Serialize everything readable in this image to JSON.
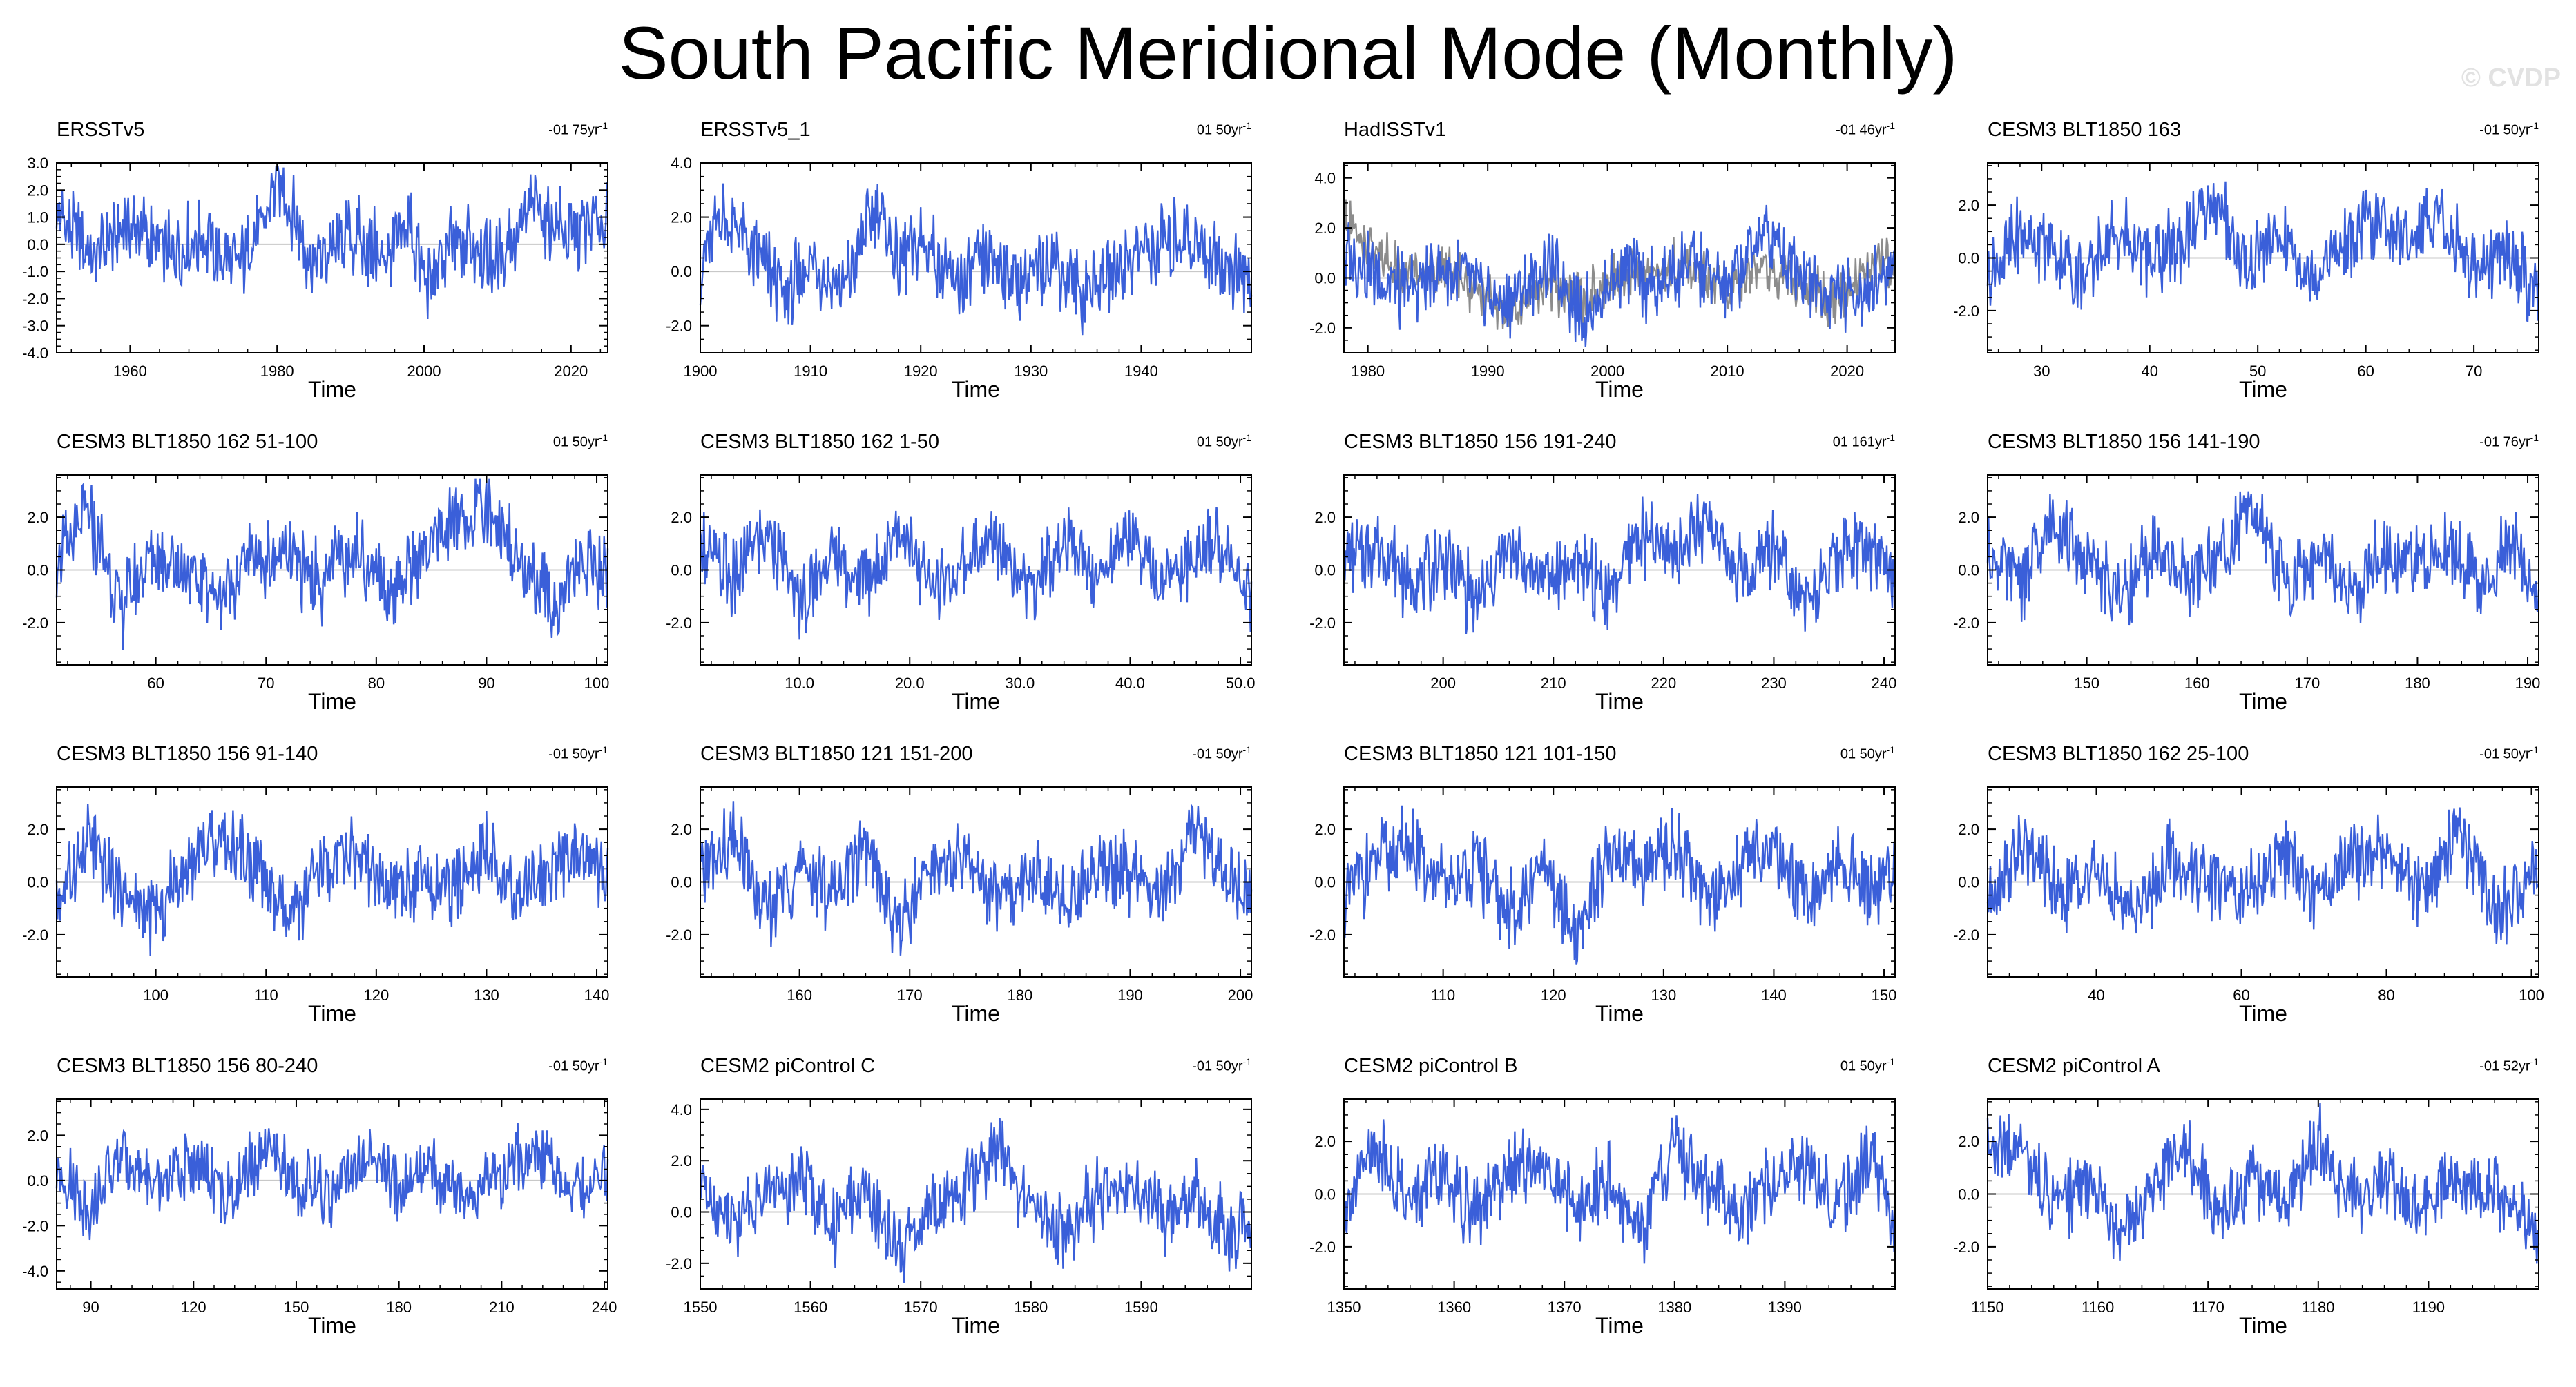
{
  "title": "South Pacific Meridional Mode (Monthly)",
  "watermark": "© CVDP",
  "colors": {
    "main_series": "#3a5fd9",
    "obs_overlay": "#8c8c8c",
    "zero_line": "#c8c8c8",
    "axis": "#000000"
  },
  "chart_data": [
    {
      "type": "line",
      "title": "ERSSTv5",
      "trend": "-01 75yr",
      "xlabel": "Time",
      "xlim": [
        1950,
        2025
      ],
      "ylim": [
        -4,
        3
      ],
      "xticks": [
        1960,
        1980,
        2000,
        2020
      ],
      "yticks": [
        -4,
        -3,
        -2,
        -1,
        0,
        1,
        2,
        3
      ],
      "ytick_labels": [
        "-4.0",
        "-3.0",
        "-2.0",
        "-1.0",
        "0.0",
        "1.0",
        "2.0",
        "3.0"
      ],
      "x": [
        1950,
        1955,
        1960,
        1965,
        1970,
        1975,
        1978,
        1980,
        1982,
        1985,
        1990,
        1995,
        1998,
        2000,
        2005,
        2010,
        2015,
        2020,
        2025
      ],
      "y": [
        1.2,
        -0.6,
        0.8,
        -0.4,
        0.2,
        -1.0,
        0.9,
        2.4,
        1.2,
        -0.8,
        0.4,
        -0.6,
        0.8,
        -1.4,
        0.2,
        -0.6,
        1.3,
        0.3,
        0.9
      ],
      "series2": null
    },
    {
      "type": "line",
      "title": "ERSSTv5_1",
      "trend": "01 50yr",
      "xlabel": "Time",
      "xlim": [
        1900,
        1950
      ],
      "ylim": [
        -3,
        4
      ],
      "xticks": [
        1900,
        1910,
        1920,
        1930,
        1940
      ],
      "yticks": [
        -2,
        0,
        2,
        4
      ],
      "ytick_labels": [
        "-2.0",
        "0.0",
        "2.0",
        "4.0"
      ],
      "x": [
        1900,
        1902,
        1905,
        1908,
        1910,
        1913,
        1916,
        1918,
        1920,
        1923,
        1926,
        1929,
        1932,
        1935,
        1938,
        1941,
        1944,
        1947,
        1950
      ],
      "y": [
        0.3,
        2.1,
        0.6,
        -0.9,
        0.4,
        -0.5,
        2.6,
        0.3,
        1.2,
        -0.6,
        0.5,
        -0.3,
        0.4,
        -0.8,
        0.3,
        0.9,
        1.3,
        0.4,
        -0.5
      ],
      "series2": null
    },
    {
      "type": "line",
      "title": "HadISSTv1",
      "trend": "-01 46yr",
      "xlabel": "Time",
      "xlim": [
        1978,
        2024
      ],
      "ylim": [
        -3,
        4.6
      ],
      "xticks": [
        1980,
        1990,
        2000,
        2010,
        2020
      ],
      "yticks": [
        -2,
        0,
        2,
        4
      ],
      "ytick_labels": [
        "-2.0",
        "0.0",
        "2.0",
        "4.0"
      ],
      "x": [
        1978,
        1980,
        1983,
        1986,
        1989,
        1992,
        1995,
        1998,
        2001,
        2004,
        2007,
        2010,
        2013,
        2016,
        2019,
        2022,
        2024
      ],
      "y": [
        0.8,
        0.4,
        -0.6,
        0.5,
        -0.4,
        -1.1,
        0.6,
        -1.6,
        0.3,
        -0.5,
        0.8,
        -0.7,
        2.2,
        0.3,
        -0.8,
        -0.4,
        0.5
      ],
      "series2": {
        "x": [
          1978,
          1980,
          1983,
          1986,
          1989,
          1992,
          1995,
          1998,
          2001,
          2004,
          2007,
          2010,
          2013,
          2016,
          2019,
          2022,
          2024
        ],
        "y": [
          2.2,
          1.3,
          0.2,
          0.4,
          -0.6,
          -1.3,
          -0.2,
          -0.9,
          0.3,
          0.2,
          0.6,
          -0.4,
          0.6,
          -0.3,
          -0.9,
          0.3,
          0.8
        ]
      }
    },
    {
      "type": "line",
      "title": "CESM3 BLT1850 163",
      "trend": "-01 50yr",
      "xlabel": "Time",
      "xlim": [
        25,
        76
      ],
      "ylim": [
        -3.6,
        3.6
      ],
      "xticks": [
        30,
        40,
        50,
        60,
        70
      ],
      "yticks": [
        -2,
        0,
        2
      ],
      "ytick_labels": [
        "-2.0",
        "0.0",
        "2.0"
      ],
      "x": [
        25,
        28,
        31,
        34,
        37,
        40,
        43,
        46,
        49,
        52,
        55,
        58,
        61,
        64,
        67,
        70,
        73,
        76
      ],
      "y": [
        -1.0,
        0.9,
        0.3,
        -0.7,
        1.1,
        -0.2,
        0.5,
        2.1,
        -0.4,
        0.9,
        -0.8,
        0.4,
        1.4,
        0.6,
        1.8,
        -0.6,
        0.3,
        -1.7
      ],
      "series2": null
    },
    {
      "type": "line",
      "title": "CESM3 BLT1850 162 51-100",
      "trend": "01 50yr",
      "xlabel": "Time",
      "xlim": [
        51,
        101
      ],
      "ylim": [
        -3.6,
        3.6
      ],
      "xticks": [
        60,
        70,
        80,
        90,
        100
      ],
      "yticks": [
        -2,
        0,
        2
      ],
      "ytick_labels": [
        "-2.0",
        "0.0",
        "2.0"
      ],
      "x": [
        51,
        54,
        57,
        60,
        63,
        66,
        69,
        72,
        75,
        78,
        81,
        84,
        87,
        90,
        93,
        96,
        99,
        101
      ],
      "y": [
        0.4,
        1.9,
        -1.4,
        0.8,
        -0.2,
        -1.0,
        0.6,
        0.3,
        -0.5,
        0.9,
        -0.6,
        0.4,
        1.8,
        2.4,
        0.5,
        -1.3,
        0.3,
        -0.4
      ],
      "series2": null
    },
    {
      "type": "line",
      "title": "CESM3 BLT1850 162 1-50",
      "trend": "01 50yr",
      "xlabel": "Time",
      "xlim": [
        1,
        51
      ],
      "ylim": [
        -3.6,
        3.6
      ],
      "xticks": [
        10,
        20,
        30,
        40,
        50
      ],
      "yticks": [
        -2,
        0,
        2
      ],
      "ytick_labels": [
        "-2.0",
        "0.0",
        "2.0"
      ],
      "xtick_labels": [
        "10.0",
        "20.0",
        "30.0",
        "40.0",
        "50.0"
      ],
      "x": [
        1,
        4,
        7,
        10,
        13,
        16,
        19,
        22,
        25,
        28,
        31,
        34,
        37,
        40,
        43,
        46,
        49,
        51
      ],
      "y": [
        1.0,
        -0.4,
        1.5,
        -1.3,
        0.6,
        -0.5,
        1.6,
        -0.8,
        0.3,
        1.1,
        -0.6,
        0.9,
        -0.3,
        1.4,
        -0.5,
        0.6,
        1.2,
        -1.5
      ],
      "series2": null
    },
    {
      "type": "line",
      "title": "CESM3 BLT1850 156 191-240",
      "trend": "01 161yr",
      "xlabel": "Time",
      "xlim": [
        191,
        241
      ],
      "ylim": [
        -3.6,
        3.6
      ],
      "xticks": [
        200,
        210,
        220,
        230,
        240
      ],
      "yticks": [
        -2,
        0,
        2
      ],
      "ytick_labels": [
        "-2.0",
        "0.0",
        "2.0"
      ],
      "x": [
        191,
        194,
        197,
        200,
        203,
        206,
        209,
        212,
        215,
        218,
        221,
        224,
        227,
        230,
        233,
        236,
        239,
        241
      ],
      "y": [
        0.3,
        1.1,
        -0.6,
        0.4,
        -1.2,
        0.8,
        -0.4,
        0.2,
        -0.9,
        1.3,
        0.5,
        2.1,
        -0.3,
        1.0,
        -1.2,
        0.4,
        0.8,
        -0.2
      ],
      "series2": null
    },
    {
      "type": "line",
      "title": "CESM3 BLT1850 156 141-190",
      "trend": "-01 76yr",
      "xlabel": "Time",
      "xlim": [
        141,
        191
      ],
      "ylim": [
        -3.6,
        3.6
      ],
      "xticks": [
        150,
        160,
        170,
        180,
        190
      ],
      "yticks": [
        -2,
        0,
        2
      ],
      "ytick_labels": [
        "-2.0",
        "0.0",
        "2.0"
      ],
      "x": [
        141,
        144,
        147,
        150,
        153,
        156,
        159,
        162,
        165,
        168,
        171,
        174,
        177,
        180,
        183,
        186,
        189,
        191
      ],
      "y": [
        0.6,
        -0.5,
        1.8,
        0.2,
        -1.0,
        0.7,
        -0.3,
        0.5,
        2.3,
        -0.6,
        0.4,
        -0.9,
        0.6,
        0.2,
        0.9,
        -0.4,
        1.0,
        -1.3
      ],
      "series2": null
    },
    {
      "type": "line",
      "title": "CESM3 BLT1850 156 91-140",
      "trend": "-01 50yr",
      "xlabel": "Time",
      "xlim": [
        91,
        141
      ],
      "ylim": [
        -3.6,
        3.6
      ],
      "xticks": [
        100,
        110,
        120,
        130,
        140
      ],
      "yticks": [
        -2,
        0,
        2
      ],
      "ytick_labels": [
        "-2.0",
        "0.0",
        "2.0"
      ],
      "x": [
        91,
        94,
        97,
        100,
        103,
        106,
        109,
        112,
        115,
        118,
        121,
        124,
        127,
        130,
        133,
        136,
        139,
        141
      ],
      "y": [
        -0.8,
        1.6,
        -0.5,
        -1.4,
        0.9,
        1.8,
        0.6,
        -1.6,
        0.3,
        1.1,
        -0.7,
        0.4,
        -0.3,
        1.2,
        -0.6,
        0.5,
        1.0,
        -0.2
      ],
      "series2": null
    },
    {
      "type": "line",
      "title": "CESM3 BLT1850 121 151-200",
      "trend": "-01 50yr",
      "xlabel": "Time",
      "xlim": [
        151,
        201
      ],
      "ylim": [
        -3.6,
        3.6
      ],
      "xticks": [
        160,
        170,
        180,
        190,
        200
      ],
      "yticks": [
        -2,
        0,
        2
      ],
      "ytick_labels": [
        "-2.0",
        "0.0",
        "2.0"
      ],
      "x": [
        151,
        154,
        157,
        160,
        163,
        166,
        169,
        172,
        175,
        178,
        181,
        184,
        187,
        190,
        193,
        196,
        199,
        201
      ],
      "y": [
        0.2,
        1.5,
        -1.2,
        0.6,
        -0.4,
        1.3,
        -1.7,
        0.5,
        0.9,
        -0.6,
        0.4,
        -0.9,
        0.7,
        0.3,
        -0.5,
        2.1,
        0.1,
        -0.8
      ],
      "series2": null
    },
    {
      "type": "line",
      "title": "CESM3 BLT1850 121 101-150",
      "trend": "01 50yr",
      "xlabel": "Time",
      "xlim": [
        101,
        151
      ],
      "ylim": [
        -3.6,
        3.6
      ],
      "xticks": [
        110,
        120,
        130,
        140,
        150
      ],
      "yticks": [
        -2,
        0,
        2
      ],
      "ytick_labels": [
        "-2.0",
        "0.0",
        "2.0"
      ],
      "x": [
        101,
        104,
        107,
        110,
        113,
        116,
        119,
        122,
        125,
        128,
        131,
        134,
        137,
        140,
        143,
        146,
        149,
        151
      ],
      "y": [
        -0.6,
        0.8,
        1.4,
        -0.3,
        0.6,
        -1.2,
        0.4,
        -2.0,
        0.9,
        0.3,
        1.5,
        -0.5,
        0.7,
        1.3,
        -0.4,
        0.6,
        -0.2,
        0.5
      ],
      "series2": null
    },
    {
      "type": "line",
      "title": "CESM3 BLT1850 162 25-100",
      "trend": "-01 50yr",
      "xlabel": "Time",
      "xlim": [
        25,
        101
      ],
      "ylim": [
        -3.6,
        3.6
      ],
      "xticks": [
        40,
        60,
        80,
        100
      ],
      "yticks": [
        -2,
        0,
        2
      ],
      "ytick_labels": [
        "-2.0",
        "0.0",
        "2.0"
      ],
      "x": [
        25,
        30,
        35,
        40,
        45,
        50,
        55,
        60,
        65,
        70,
        75,
        80,
        85,
        90,
        95,
        101
      ],
      "y": [
        -0.2,
        1.3,
        -0.6,
        0.4,
        -1.1,
        0.7,
        0.2,
        -0.5,
        1.0,
        -0.3,
        0.6,
        1.2,
        -0.6,
        2.2,
        -1.4,
        0.4
      ],
      "series2": null
    },
    {
      "type": "line",
      "title": "CESM3 BLT1850 156 80-240",
      "trend": "-01 50yr",
      "xlabel": "Time",
      "xlim": [
        80,
        241
      ],
      "ylim": [
        -4.8,
        3.6
      ],
      "xticks": [
        90,
        120,
        150,
        180,
        210,
        240
      ],
      "yticks": [
        -4,
        -2,
        0,
        2
      ],
      "ytick_labels": [
        "-4.0",
        "-2.0",
        "0.0",
        "2.0"
      ],
      "x": [
        80,
        90,
        100,
        110,
        120,
        130,
        140,
        150,
        160,
        170,
        180,
        190,
        200,
        210,
        220,
        230,
        241
      ],
      "y": [
        0.6,
        -1.2,
        1.1,
        -0.4,
        0.8,
        -0.9,
        1.3,
        0.2,
        -0.8,
        0.9,
        -0.3,
        0.6,
        -1.0,
        0.4,
        1.5,
        -0.6,
        0.3
      ],
      "series2": null
    },
    {
      "type": "line",
      "title": "CESM2 piControl C",
      "trend": "-01 50yr",
      "xlabel": "Time",
      "xlim": [
        1550,
        1600
      ],
      "ylim": [
        -3,
        4.4
      ],
      "xticks": [
        1550,
        1560,
        1570,
        1580,
        1590
      ],
      "yticks": [
        -2,
        0,
        2,
        4
      ],
      "ytick_labels": [
        "-2.0",
        "0.0",
        "2.0",
        "4.0"
      ],
      "x": [
        1550,
        1553,
        1556,
        1559,
        1562,
        1565,
        1568,
        1571,
        1574,
        1577,
        1580,
        1583,
        1586,
        1589,
        1592,
        1595,
        1598,
        1600
      ],
      "y": [
        1.1,
        -0.4,
        0.8,
        1.4,
        -0.6,
        0.9,
        -1.9,
        0.4,
        0.8,
        2.6,
        0.2,
        -0.7,
        0.5,
        1.2,
        -0.3,
        0.6,
        -1.0,
        -0.6
      ],
      "series2": null
    },
    {
      "type": "line",
      "title": "CESM2 piControl B",
      "trend": "01 50yr",
      "xlabel": "Time",
      "xlim": [
        1350,
        1400
      ],
      "ylim": [
        -3.6,
        3.6
      ],
      "xticks": [
        1350,
        1360,
        1370,
        1380,
        1390
      ],
      "yticks": [
        -2,
        0,
        2
      ],
      "ytick_labels": [
        "-2.0",
        "0.0",
        "2.0"
      ],
      "x": [
        1350,
        1353,
        1356,
        1359,
        1362,
        1365,
        1368,
        1371,
        1374,
        1377,
        1380,
        1383,
        1386,
        1389,
        1392,
        1395,
        1398,
        1400
      ],
      "y": [
        -0.4,
        1.8,
        -0.3,
        0.6,
        -0.8,
        0.9,
        1.5,
        -0.6,
        0.4,
        -1.5,
        1.9,
        0.3,
        -0.7,
        0.5,
        1.2,
        -0.4,
        1.6,
        -1.2
      ],
      "series2": null
    },
    {
      "type": "line",
      "title": "CESM2 piControl A",
      "trend": "-01 52yr",
      "xlabel": "Time",
      "xlim": [
        1150,
        1200
      ],
      "ylim": [
        -3.6,
        3.6
      ],
      "xticks": [
        1150,
        1160,
        1170,
        1180,
        1190
      ],
      "yticks": [
        -2,
        0,
        2
      ],
      "ytick_labels": [
        "-2.0",
        "0.0",
        "2.0"
      ],
      "x": [
        1150,
        1153,
        1156,
        1159,
        1162,
        1165,
        1168,
        1171,
        1174,
        1177,
        1180,
        1183,
        1186,
        1189,
        1192,
        1195,
        1198,
        1200
      ],
      "y": [
        1.4,
        2.1,
        -0.5,
        0.6,
        -1.4,
        0.3,
        1.9,
        -0.8,
        0.4,
        -0.6,
        2.1,
        -0.3,
        0.5,
        -0.9,
        0.8,
        0.2,
        -0.6,
        -1.6
      ],
      "series2": null
    }
  ]
}
